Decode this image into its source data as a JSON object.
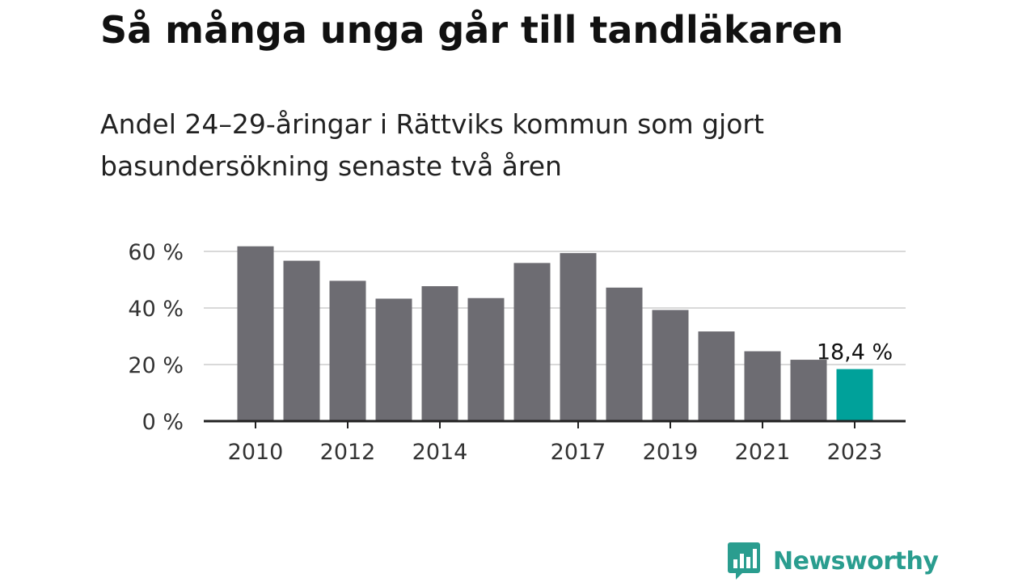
{
  "title": "Så många unga går till tandläkaren",
  "subtitle": "Andel 24–29-åringar i Rättviks kommun som gjort basundersökning senaste två åren",
  "brand": {
    "name": "Newsworthy",
    "color": "#2a9d8f",
    "icon": "newsworthy-logo-icon"
  },
  "colors": {
    "bar": "#6d6c72",
    "highlight": "#00a19a",
    "grid": "#d9d9d9",
    "axis": "#222222"
  },
  "chart_data": {
    "type": "bar",
    "title": "Så många unga går till tandläkaren",
    "subtitle": "Andel 24–29-åringar i Rättviks kommun som gjort basundersökning senaste två åren",
    "xlabel": "",
    "ylabel": "",
    "unit": "%",
    "grid": true,
    "legend": "none",
    "ylim": [
      0,
      60
    ],
    "yticks": [
      0,
      20,
      40,
      60
    ],
    "ytick_labels": [
      "0 %",
      "20 %",
      "40 %",
      "60 %"
    ],
    "categories": [
      "2010",
      "2011",
      "2012",
      "2013",
      "2014",
      "2015",
      "2016",
      "2017",
      "2018",
      "2019",
      "2020",
      "2021",
      "2022",
      "2023"
    ],
    "xtick_labels": [
      "2010",
      "",
      "2012",
      "",
      "2014",
      "",
      "",
      "2017",
      "",
      "2019",
      "",
      "2021",
      "",
      "2023"
    ],
    "values": [
      61.8,
      56.7,
      49.6,
      43.3,
      47.7,
      43.5,
      55.9,
      59.4,
      47.2,
      39.3,
      31.7,
      24.7,
      21.7,
      18.4
    ],
    "highlight_index": 13,
    "annotations": [
      {
        "category": "2023",
        "text": "18,4 %"
      }
    ]
  }
}
